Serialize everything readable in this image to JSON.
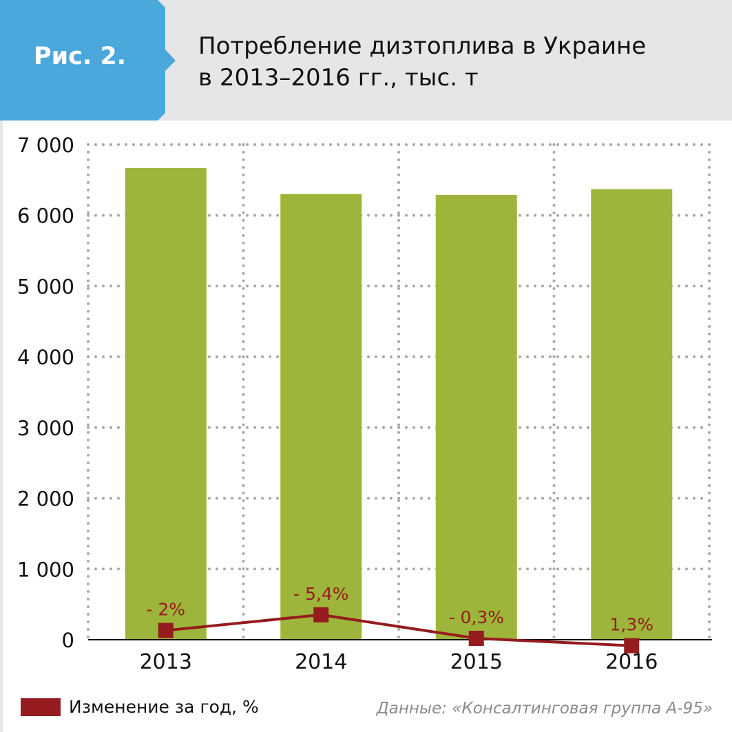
{
  "figure_label": "Рис. 2.",
  "title_line1": "Потребление дизтоплива в Украине",
  "title_line2": "в 2013–2016 гг., тыс. т",
  "legend_label": "Изменение за год, %",
  "source": "Данные: «Консалтинговая группа А-95»",
  "colors": {
    "bar": "#9db53a",
    "line": "#951b1e",
    "accent": "#4aa8dc",
    "header": "#e6e6e8",
    "grid": "#a8a8a8"
  },
  "chart_data": {
    "type": "bar",
    "categories": [
      "2013",
      "2014",
      "2015",
      "2016"
    ],
    "values": [
      6670,
      6300,
      6290,
      6370
    ],
    "ylim": [
      0,
      7000
    ],
    "yticks": [
      0,
      1000,
      2000,
      3000,
      4000,
      5000,
      6000,
      7000
    ],
    "ytick_labels": [
      "0",
      "1 000",
      "2 000",
      "3 000",
      "4 000",
      "5 000",
      "6 000",
      "7 000"
    ],
    "grid": "dotted",
    "legend_placement": "bottom-left",
    "line_series": {
      "name": "Изменение за год, %",
      "values": [
        -2,
        -5.4,
        -0.3,
        1.3
      ],
      "labels": [
        "- 2%",
        "- 5,4%",
        "- 0,3%",
        "1,3%"
      ]
    }
  }
}
